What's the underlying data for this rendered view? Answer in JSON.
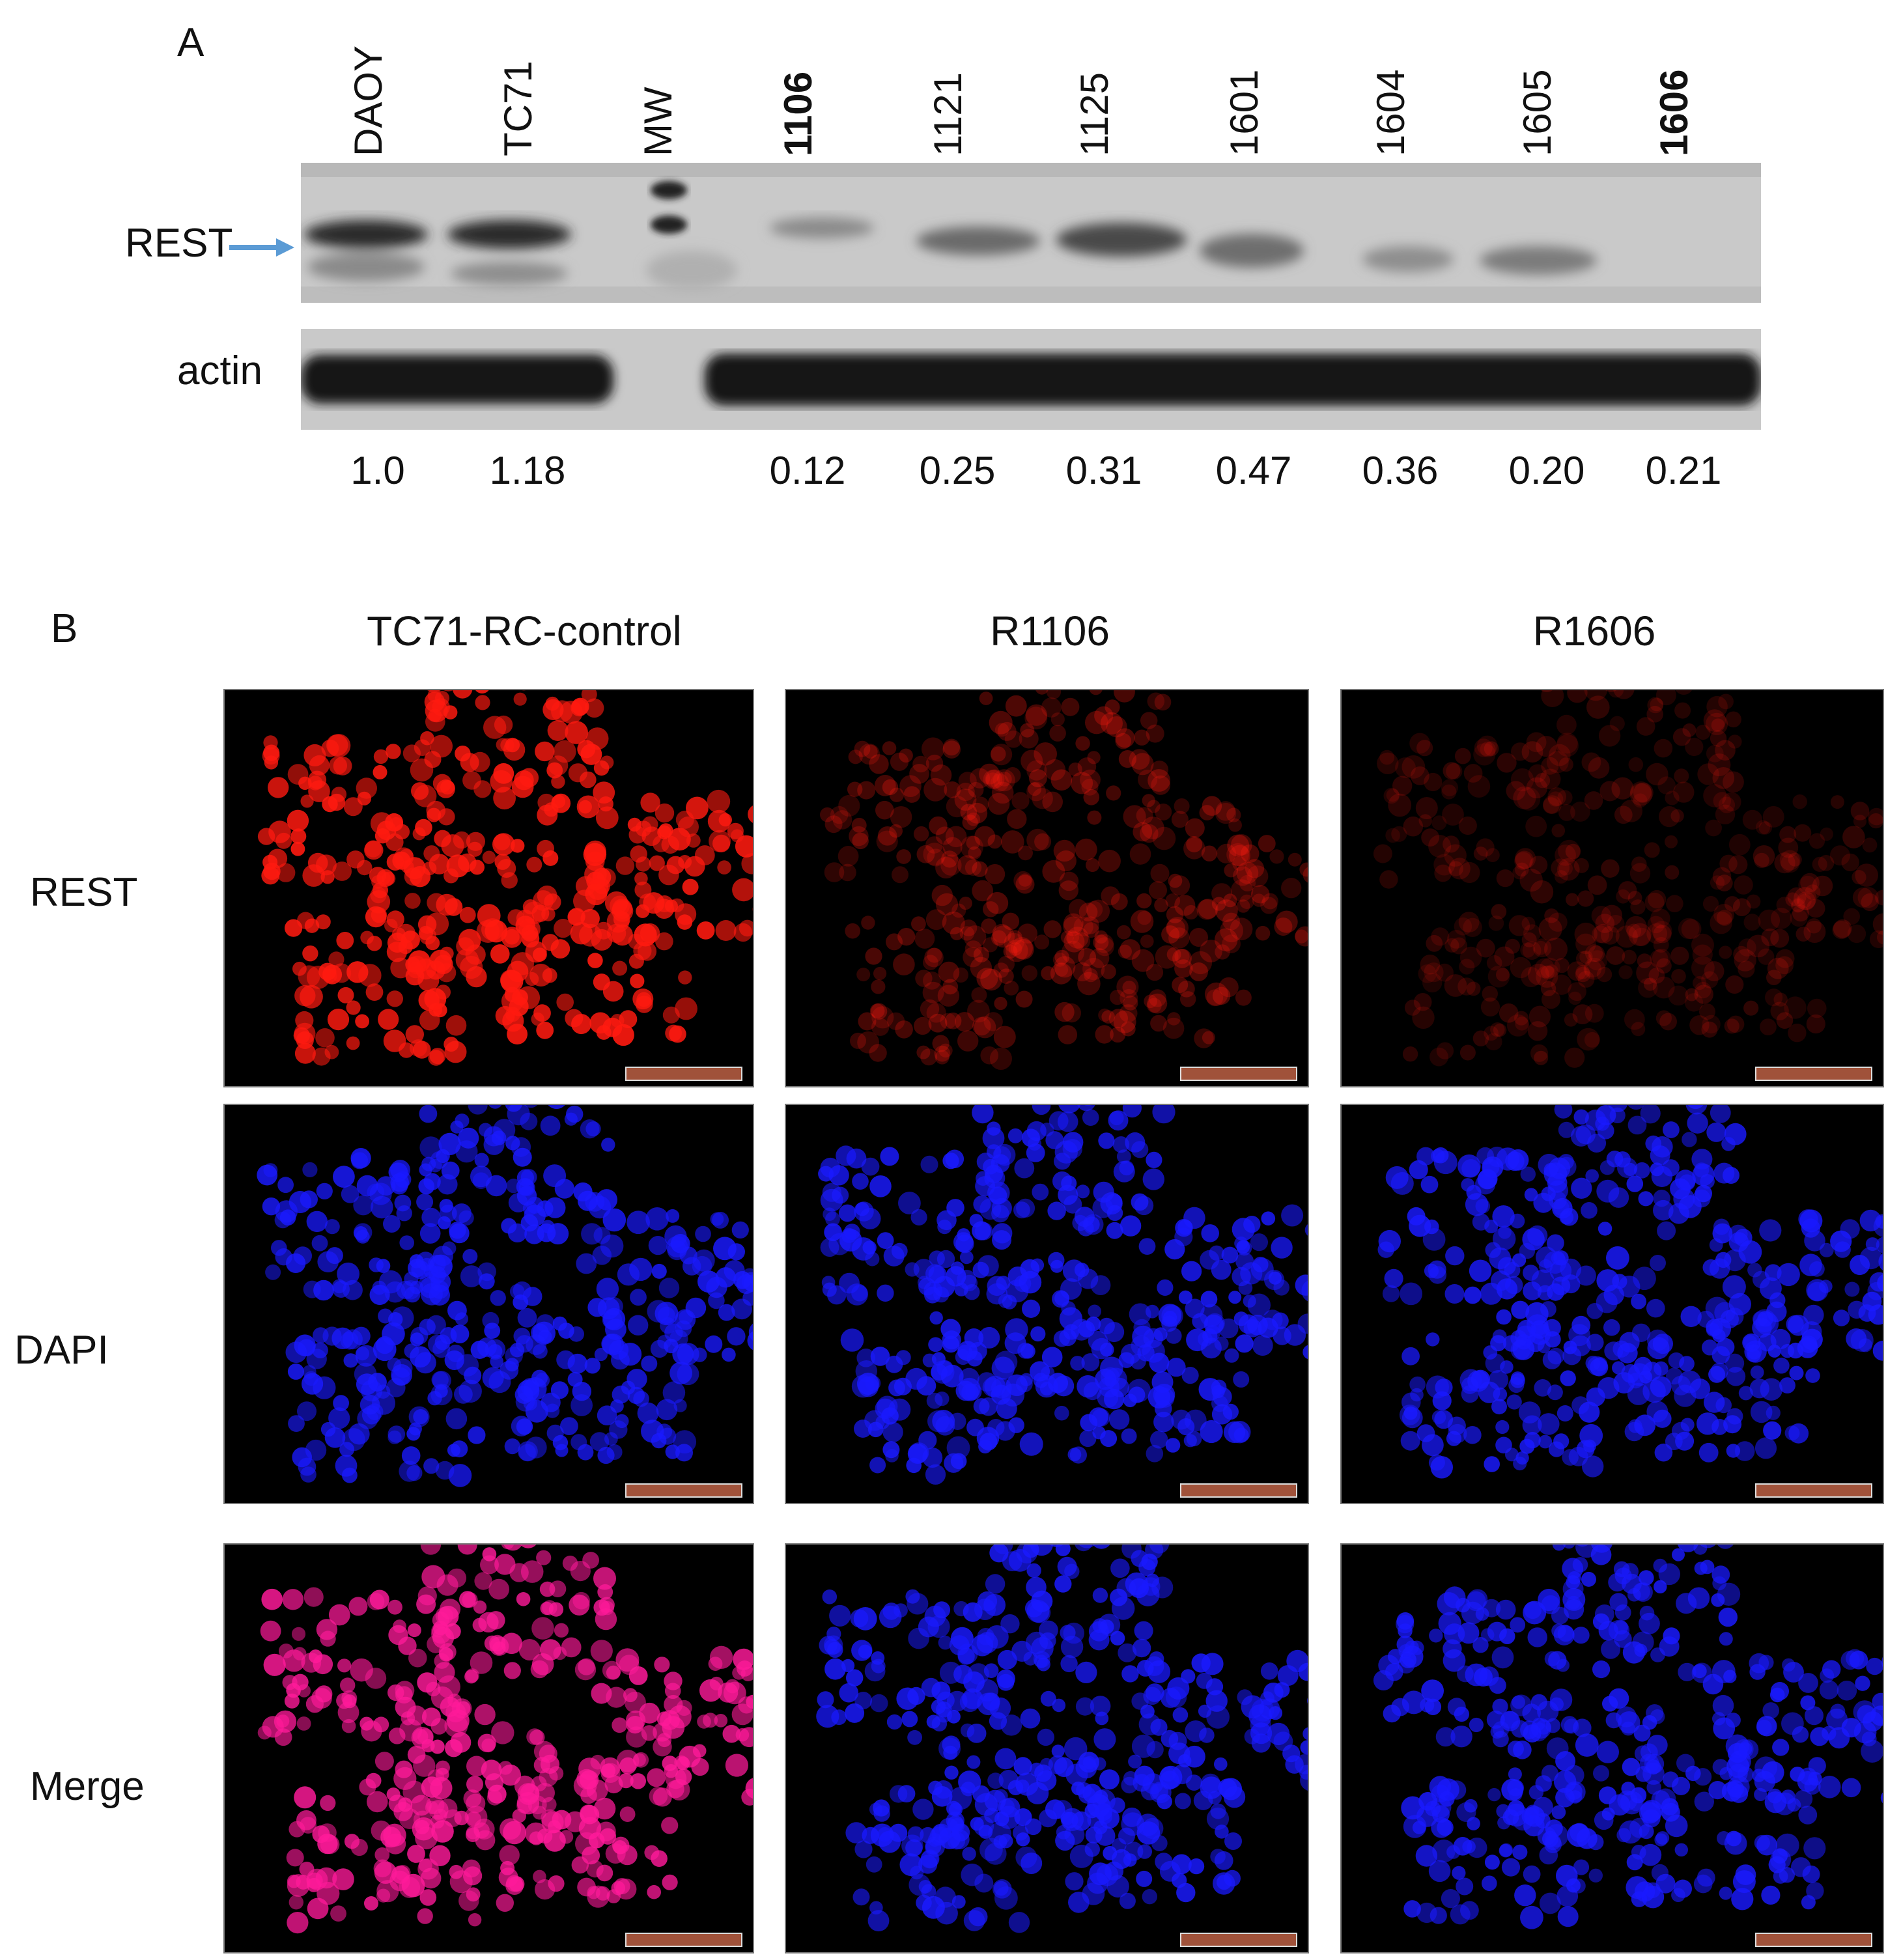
{
  "panel_a": {
    "label": "A",
    "lanes": [
      {
        "name": "DAOY",
        "bold": false,
        "value": "1.0"
      },
      {
        "name": "TC71",
        "bold": false,
        "value": "1.18"
      },
      {
        "name": "MW",
        "bold": false,
        "value": ""
      },
      {
        "name": "1106",
        "bold": true,
        "value": "0.12"
      },
      {
        "name": "1121",
        "bold": false,
        "value": "0.25"
      },
      {
        "name": "1125",
        "bold": false,
        "value": "0.31"
      },
      {
        "name": "1601",
        "bold": false,
        "value": "0.47"
      },
      {
        "name": "1604",
        "bold": false,
        "value": "0.36"
      },
      {
        "name": "1605",
        "bold": false,
        "value": "0.20"
      },
      {
        "name": "1606",
        "bold": true,
        "value": "0.21"
      }
    ],
    "rest_label": "REST",
    "actin_label": "actin",
    "arrow_color": "#5b9bd5"
  },
  "panel_b": {
    "label": "B",
    "columns": [
      "TC71-RC-control",
      "R1106",
      "R1606"
    ],
    "rows": [
      "REST",
      "DAPI",
      "Merge"
    ],
    "colors": {
      "rest": "#ff1a10",
      "dapi": "#1a1aff",
      "merge": "#ff1a9a",
      "scalebar": "#a0523a"
    }
  }
}
